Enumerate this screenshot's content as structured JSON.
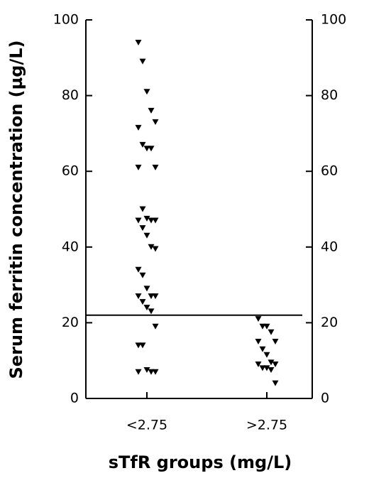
{
  "chart_data": {
    "type": "strip",
    "y_label": "Serum ferritin concentration (µg/L)",
    "x_label": "sTfR groups (mg/L)",
    "categories": [
      "<2.75",
      ">2.75"
    ],
    "series": [
      {
        "color": "#000000",
        "values": [
          94,
          89,
          81,
          76,
          73,
          71.5,
          67,
          66,
          66,
          61,
          61,
          50,
          47.5,
          47,
          47,
          47,
          45,
          43,
          40,
          39.5,
          34,
          32.5,
          29,
          27,
          27,
          27,
          25.5,
          24,
          23,
          19,
          14,
          14,
          7.5,
          7,
          7,
          7
        ]
      },
      {
        "color": "#000000",
        "values": [
          21,
          19,
          19,
          17.5,
          15,
          15,
          13,
          11.5,
          9.5,
          9,
          9,
          8,
          8,
          7.5,
          4
        ]
      }
    ],
    "reference_line": 22,
    "ylim": [
      0,
      100
    ],
    "yticks": [
      0,
      20,
      40,
      60,
      80,
      100
    ]
  }
}
